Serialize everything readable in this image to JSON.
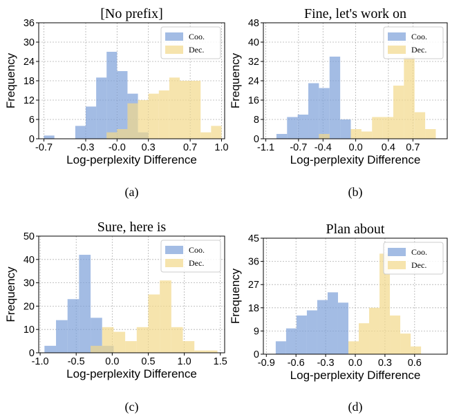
{
  "colors": {
    "coo": "#7C9FD8",
    "dec": "#F2D98A"
  },
  "chart_data": [
    {
      "type": "bar",
      "title": "[No prefix]",
      "caption": "(a)",
      "xlabel": "Log-perplexity Difference",
      "ylabel": "Frequency",
      "xlim": [
        -0.75,
        1.03
      ],
      "ylim": [
        0,
        36
      ],
      "xticks": [
        -0.7,
        -0.3,
        0.0,
        0.3,
        0.7,
        1.0
      ],
      "xtick_labels": [
        "-0.7",
        "-0.3",
        "-0.0",
        "0.3",
        "0.7",
        "1.0"
      ],
      "yticks": [
        0,
        6,
        12,
        18,
        24,
        30,
        36
      ],
      "legend": {
        "position": "top-right",
        "entries": [
          "Coo.",
          "Dec."
        ]
      },
      "bin_width": 0.1,
      "series": [
        {
          "name": "Coo.",
          "bins": [
            [
              -0.65,
              1
            ],
            [
              -0.35,
              4
            ],
            [
              -0.25,
              10
            ],
            [
              -0.15,
              19
            ],
            [
              -0.05,
              27
            ],
            [
              0.05,
              21
            ],
            [
              0.15,
              14
            ],
            [
              0.25,
              2
            ]
          ]
        },
        {
          "name": "Dec.",
          "bins": [
            [
              -0.05,
              2
            ],
            [
              0.05,
              3
            ],
            [
              0.15,
              11
            ],
            [
              0.25,
              12
            ],
            [
              0.35,
              14
            ],
            [
              0.45,
              15
            ],
            [
              0.55,
              19
            ],
            [
              0.65,
              18
            ],
            [
              0.75,
              18
            ],
            [
              0.85,
              2
            ],
            [
              0.95,
              4
            ]
          ]
        }
      ]
    },
    {
      "type": "bar",
      "title": "Fine, let's work on",
      "caption": "(b)",
      "xlabel": "Log-perplexity Difference",
      "ylabel": "Frequency",
      "xlim": [
        -1.13,
        1.12
      ],
      "ylim": [
        0,
        48
      ],
      "xticks": [
        -1.1,
        -0.7,
        -0.4,
        0.0,
        0.4,
        0.7
      ],
      "xtick_labels": [
        "-1.1",
        "-0.7",
        "-0.4",
        "0.0",
        "0.4",
        "0.7"
      ],
      "yticks": [
        0,
        8,
        16,
        24,
        32,
        40,
        48
      ],
      "legend": {
        "position": "top-right",
        "entries": [
          "Coo.",
          "Dec."
        ]
      },
      "bin_width": 0.13,
      "series": [
        {
          "name": "Coo.",
          "bins": [
            [
              -0.905,
              2
            ],
            [
              -0.775,
              9
            ],
            [
              -0.645,
              10
            ],
            [
              -0.515,
              23
            ],
            [
              -0.385,
              21
            ],
            [
              -0.255,
              34
            ],
            [
              -0.125,
              8
            ]
          ]
        },
        {
          "name": "Dec.",
          "bins": [
            [
              -0.385,
              2
            ],
            [
              0.005,
              4
            ],
            [
              0.135,
              3
            ],
            [
              0.265,
              9
            ],
            [
              0.395,
              9
            ],
            [
              0.525,
              22
            ],
            [
              0.655,
              34
            ],
            [
              0.785,
              11
            ],
            [
              0.915,
              4
            ]
          ]
        }
      ]
    },
    {
      "type": "bar",
      "title": "Sure, here is",
      "caption": "(c)",
      "xlabel": "Log-perplexity Difference",
      "ylabel": "Frequency",
      "xlim": [
        -1.02,
        1.56
      ],
      "ylim": [
        0,
        50
      ],
      "xticks": [
        -1.0,
        -0.5,
        0.0,
        0.5,
        1.0,
        1.5
      ],
      "xtick_labels": [
        "-1.0",
        "-0.5",
        "0.0",
        "0.5",
        "1.0",
        "1.5"
      ],
      "yticks": [
        0,
        10,
        20,
        30,
        40,
        50
      ],
      "legend": {
        "position": "top-right",
        "entries": [
          "Coo.",
          "Dec."
        ]
      },
      "bin_width": 0.16,
      "series": [
        {
          "name": "Coo.",
          "bins": [
            [
              -0.86,
              3
            ],
            [
              -0.7,
              14
            ],
            [
              -0.54,
              23
            ],
            [
              -0.38,
              42
            ],
            [
              -0.22,
              15
            ],
            [
              -0.06,
              3
            ]
          ]
        },
        {
          "name": "Dec.",
          "bins": [
            [
              -0.22,
              3
            ],
            [
              -0.06,
              11
            ],
            [
              0.1,
              9
            ],
            [
              0.26,
              5
            ],
            [
              0.42,
              11
            ],
            [
              0.58,
              25
            ],
            [
              0.74,
              31
            ],
            [
              0.9,
              11
            ],
            [
              1.06,
              5
            ],
            [
              1.22,
              1
            ],
            [
              1.38,
              1
            ]
          ]
        }
      ]
    },
    {
      "type": "bar",
      "title": "Plan about",
      "caption": "(d)",
      "xlabel": "Log-perplexity Difference",
      "ylabel": "Frequency",
      "xlim": [
        -0.93,
        0.93
      ],
      "ylim": [
        0,
        45
      ],
      "xticks": [
        -0.9,
        -0.6,
        -0.3,
        0.0,
        0.3,
        0.6
      ],
      "xtick_labels": [
        "-0.9",
        "-0.6",
        "-0.3",
        "0.0",
        "0.3",
        "0.6"
      ],
      "yticks": [
        0,
        9,
        18,
        27,
        36,
        45
      ],
      "legend": {
        "position": "top-right",
        "entries": [
          "Coo.",
          "Dec."
        ]
      },
      "bin_width": 0.105,
      "series": [
        {
          "name": "Coo.",
          "bins": [
            [
              -0.7525,
              5
            ],
            [
              -0.6475,
              10
            ],
            [
              -0.5425,
              15
            ],
            [
              -0.4375,
              17
            ],
            [
              -0.3325,
              21
            ],
            [
              -0.2275,
              24
            ],
            [
              -0.1225,
              20
            ]
          ]
        },
        {
          "name": "Dec.",
          "bins": [
            [
              -0.0175,
              5
            ],
            [
              0.0875,
              12
            ],
            [
              0.1925,
              18
            ],
            [
              0.2975,
              39
            ],
            [
              0.4025,
              15
            ],
            [
              0.5075,
              8
            ],
            [
              0.6125,
              3
            ]
          ]
        }
      ]
    }
  ]
}
